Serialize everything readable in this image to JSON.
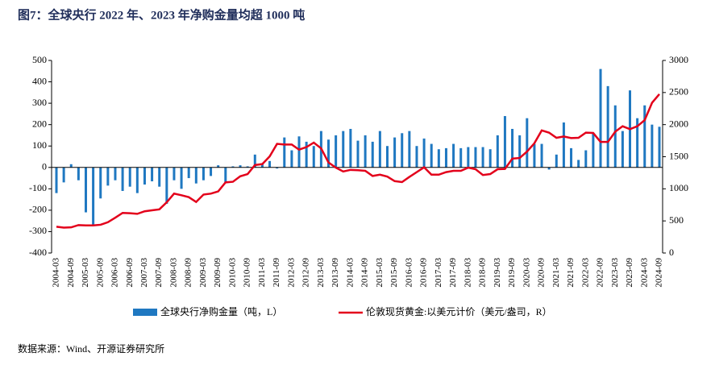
{
  "chart_data": {
    "type": "bar_line",
    "title": "图7：全球央行 2022 年、2023 年净购金量均超 1000 吨",
    "source": "数据来源：Wind、开源证券研究所",
    "categories": [
      "2004-03",
      null,
      "2004-09",
      null,
      "2005-03",
      null,
      "2005-09",
      null,
      "2006-03",
      null,
      "2006-09",
      null,
      "2007-03",
      null,
      "2007-09",
      null,
      "2008-03",
      null,
      "2008-09",
      null,
      "2009-03",
      null,
      "2009-09",
      null,
      "2010-03",
      null,
      "2010-09",
      null,
      "2011-03",
      null,
      "2011-09",
      null,
      "2012-03",
      null,
      "2012-09",
      null,
      "2013-03",
      null,
      "2013-09",
      null,
      "2014-03",
      null,
      "2014-09",
      null,
      "2015-03",
      null,
      "2015-09",
      null,
      "2016-03",
      null,
      "2016-09",
      null,
      "2017-03",
      null,
      "2017-09",
      null,
      "2018-03",
      null,
      "2018-09",
      null,
      "2019-03",
      null,
      "2019-09",
      null,
      "2020-03",
      null,
      "2020-09",
      null,
      "2021-03",
      null,
      "2021-09",
      null,
      "2022-03",
      null,
      "2022-09",
      null,
      "2023-03",
      null,
      "2023-09",
      null,
      "2024-03",
      null,
      "2024-09"
    ],
    "series": [
      {
        "name": "全球央行净购金量（吨，L）",
        "type": "bar",
        "color": "#1f78c1",
        "values": [
          -120,
          -70,
          15,
          -60,
          -210,
          -270,
          -145,
          -85,
          -60,
          -110,
          -90,
          -120,
          -80,
          -65,
          -90,
          -170,
          -60,
          -100,
          -50,
          -75,
          -60,
          -40,
          10,
          -70,
          5,
          10,
          5,
          60,
          15,
          30,
          -5,
          140,
          80,
          145,
          120,
          100,
          170,
          130,
          150,
          170,
          180,
          125,
          150,
          120,
          170,
          100,
          140,
          160,
          170,
          100,
          135,
          110,
          85,
          90,
          110,
          90,
          95,
          95,
          95,
          85,
          150,
          240,
          180,
          150,
          230,
          110,
          110,
          -10,
          60,
          210,
          90,
          35,
          80,
          160,
          460,
          380,
          290,
          170,
          360,
          230,
          290,
          200,
          190
        ]
      },
      {
        "name": "伦敦现货黄金:以美元计价（美元/盎司，R）",
        "type": "line",
        "axis": "y2",
        "color": "#e3001b",
        "values": [
          410,
          395,
          400,
          435,
          430,
          430,
          440,
          480,
          550,
          625,
          620,
          610,
          650,
          665,
          680,
          790,
          925,
          900,
          870,
          795,
          910,
          925,
          960,
          1100,
          1110,
          1195,
          1230,
          1370,
          1385,
          1505,
          1700,
          1690,
          1690,
          1610,
          1650,
          1720,
          1630,
          1410,
          1330,
          1270,
          1295,
          1290,
          1280,
          1200,
          1220,
          1190,
          1120,
          1105,
          1185,
          1260,
          1335,
          1220,
          1220,
          1260,
          1280,
          1280,
          1330,
          1305,
          1215,
          1230,
          1305,
          1310,
          1470,
          1480,
          1580,
          1710,
          1910,
          1875,
          1795,
          1815,
          1790,
          1795,
          1875,
          1870,
          1730,
          1730,
          1890,
          1975,
          1930,
          1975,
          2070,
          2340,
          2475
        ]
      }
    ],
    "ylim": [
      -400,
      500
    ],
    "yticks": [
      -400,
      -300,
      -200,
      -100,
      0,
      100,
      200,
      300,
      400,
      500
    ],
    "y2lim": [
      0,
      3000
    ],
    "y2ticks": [
      0,
      500,
      1000,
      1500,
      2000,
      2500,
      3000
    ],
    "legend": "bottom"
  }
}
